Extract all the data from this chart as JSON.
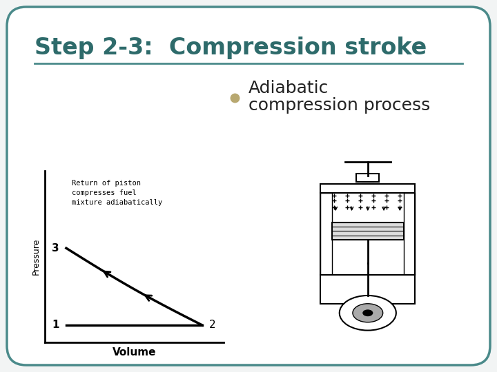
{
  "title": "Step 2-3:  Compression stroke",
  "title_color": "#2E6B6B",
  "title_fontsize": 24,
  "bullet_text_line1": "Adiabatic",
  "bullet_text_line2": "compression process",
  "bullet_color": "#B8A870",
  "text_color": "#222222",
  "bg_color": "#FFFFFF",
  "border_color": "#4A8A8A",
  "line_color": "#4A8A8A",
  "graph_annotation": "Return of piston\ncompresses fuel\nmixture adiabatically",
  "graph_xlabel": "Volume",
  "graph_ylabel": "Pressure",
  "graph_point1_label": "1",
  "graph_point2_label": "2",
  "graph_point3_label": "3",
  "slide_bg": "#F2F4F4"
}
